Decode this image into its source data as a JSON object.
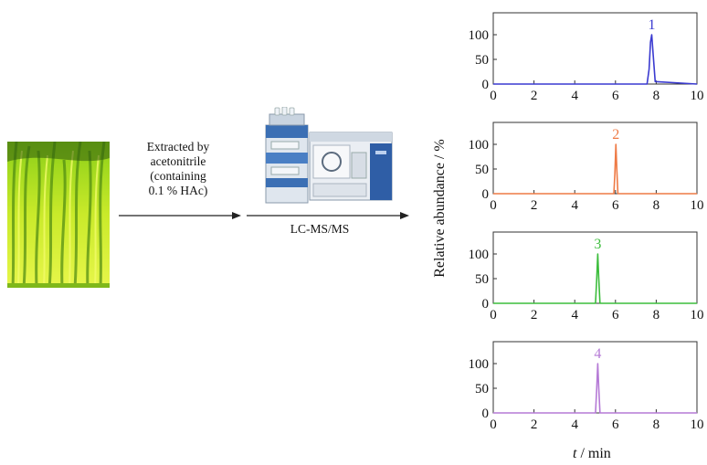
{
  "workflow": {
    "extraction_label": [
      "Extracted by",
      "acetonitrile",
      "(containing",
      "0.1 % HAc)"
    ],
    "analysis_label": "LC-MS/MS"
  },
  "axes": {
    "ylabel": "Relative abundance / %",
    "xlabel_var": "t",
    "xlabel_unit": " / min"
  },
  "colors": {
    "peak1": "#3a3ad0",
    "peak2": "#ee7a45",
    "peak3": "#3cbd3c",
    "peak4": "#b57ad6",
    "plant_light": "#d4f02a",
    "plant_dark": "#4a7a10"
  },
  "chart_data": [
    {
      "type": "line",
      "label": "1",
      "color": "#3a3ad0",
      "x": [
        0,
        7.55,
        7.65,
        7.72,
        7.78,
        7.85,
        7.95,
        10
      ],
      "y": [
        0,
        0,
        30,
        85,
        100,
        60,
        5,
        0
      ],
      "xlim": [
        0,
        10
      ],
      "ylim": [
        0,
        100
      ],
      "xticks": [
        0,
        2,
        4,
        6,
        8,
        10
      ],
      "yticks": [
        0,
        50,
        100
      ]
    },
    {
      "type": "line",
      "label": "2",
      "color": "#ee7a45",
      "x": [
        0,
        5.92,
        5.97,
        6.02,
        6.07,
        6.12,
        10
      ],
      "y": [
        0,
        0,
        40,
        100,
        45,
        0,
        0
      ],
      "xlim": [
        0,
        10
      ],
      "ylim": [
        0,
        100
      ],
      "xticks": [
        0,
        2,
        4,
        6,
        8,
        10
      ],
      "yticks": [
        0,
        50,
        100
      ]
    },
    {
      "type": "line",
      "label": "3",
      "color": "#3cbd3c",
      "x": [
        0,
        5.02,
        5.08,
        5.13,
        5.18,
        5.24,
        10
      ],
      "y": [
        0,
        0,
        50,
        100,
        50,
        0,
        0
      ],
      "xlim": [
        0,
        10
      ],
      "ylim": [
        0,
        100
      ],
      "xticks": [
        0,
        2,
        4,
        6,
        8,
        10
      ],
      "yticks": [
        0,
        50,
        100
      ]
    },
    {
      "type": "line",
      "label": "4",
      "color": "#b57ad6",
      "x": [
        0,
        5.02,
        5.08,
        5.13,
        5.18,
        5.24,
        10
      ],
      "y": [
        0,
        0,
        50,
        100,
        50,
        0,
        0
      ],
      "xlim": [
        0,
        10
      ],
      "ylim": [
        0,
        100
      ],
      "xticks": [
        0,
        2,
        4,
        6,
        8,
        10
      ],
      "yticks": [
        0,
        50,
        100
      ]
    }
  ]
}
